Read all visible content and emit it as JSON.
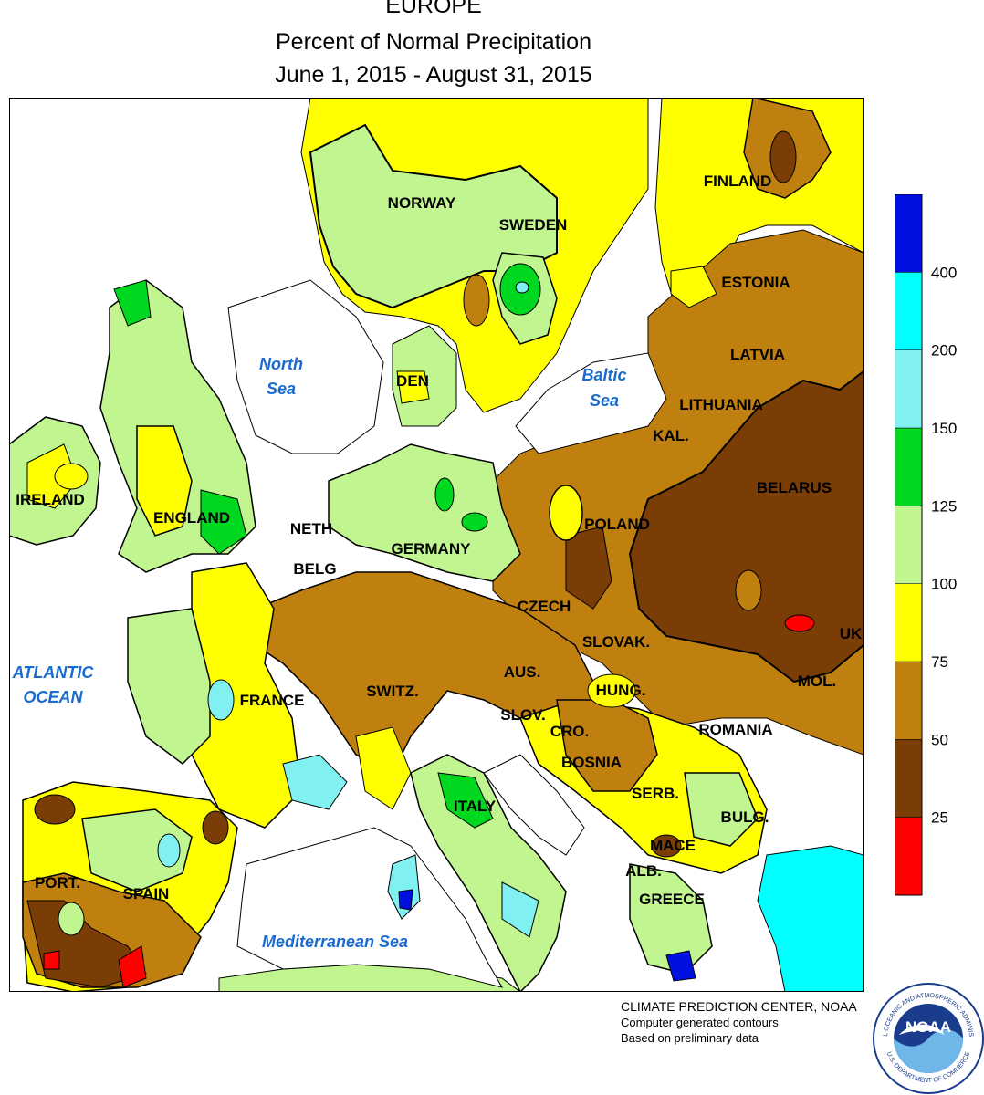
{
  "header": {
    "region": "EUROPE",
    "title": "Percent of Normal Precipitation",
    "dates": "June 1, 2015 - August 31, 2015"
  },
  "legend": {
    "colors": [
      "#ff0000",
      "#7a3d06",
      "#c08010",
      "#ffff00",
      "#c0f590",
      "#00d820",
      "#80f0f0",
      "#00ffff",
      "#0010e0"
    ],
    "ticks": [
      "25",
      "50",
      "75",
      "100",
      "125",
      "150",
      "200",
      "400"
    ]
  },
  "water_labels": {
    "north_sea_1": "North",
    "north_sea_2": "Sea",
    "baltic_sea_1": "Baltic",
    "baltic_sea_2": "Sea",
    "atlantic_1": "ATLANTIC",
    "atlantic_2": "OCEAN",
    "mediterranean": "Mediterranean Sea"
  },
  "countries": {
    "norway": "NORWAY",
    "sweden": "SWEDEN",
    "finland": "FINLAND",
    "estonia": "ESTONIA",
    "latvia": "LATVIA",
    "lithuania": "LITHUANIA",
    "kal": "KAL.",
    "belarus": "BELARUS",
    "ireland": "IRELAND",
    "england": "ENGLAND",
    "den": "DEN",
    "neth": "NETH",
    "belg": "BELG",
    "germany": "GERMANY",
    "poland": "POLAND",
    "czech": "CZECH",
    "slovak": "SLOVAK.",
    "uk": "UK",
    "aus": "AUS.",
    "hung": "HUNG.",
    "mol": "MOL.",
    "france": "FRANCE",
    "switz": "SWITZ.",
    "slov": "SLOV.",
    "cro": "CRO.",
    "romania": "ROMANIA",
    "bosnia": "BOSNIA",
    "serb": "SERB.",
    "italy": "ITALY",
    "bulg": "BULG.",
    "mace": "MACE",
    "alb": "ALB.",
    "greece": "GREECE",
    "port": "PORT.",
    "spain": "SPAIN"
  },
  "credits": {
    "line1": "CLIMATE PREDICTION CENTER, NOAA",
    "line2": "Computer generated contours",
    "line3": "Based on preliminary data"
  },
  "logo": {
    "text": "NOAA",
    "ring_top": "NATIONAL OCEANIC AND ATMOSPHERIC ADMINISTRATION",
    "ring_bottom": "U.S. DEPARTMENT OF COMMERCE"
  }
}
